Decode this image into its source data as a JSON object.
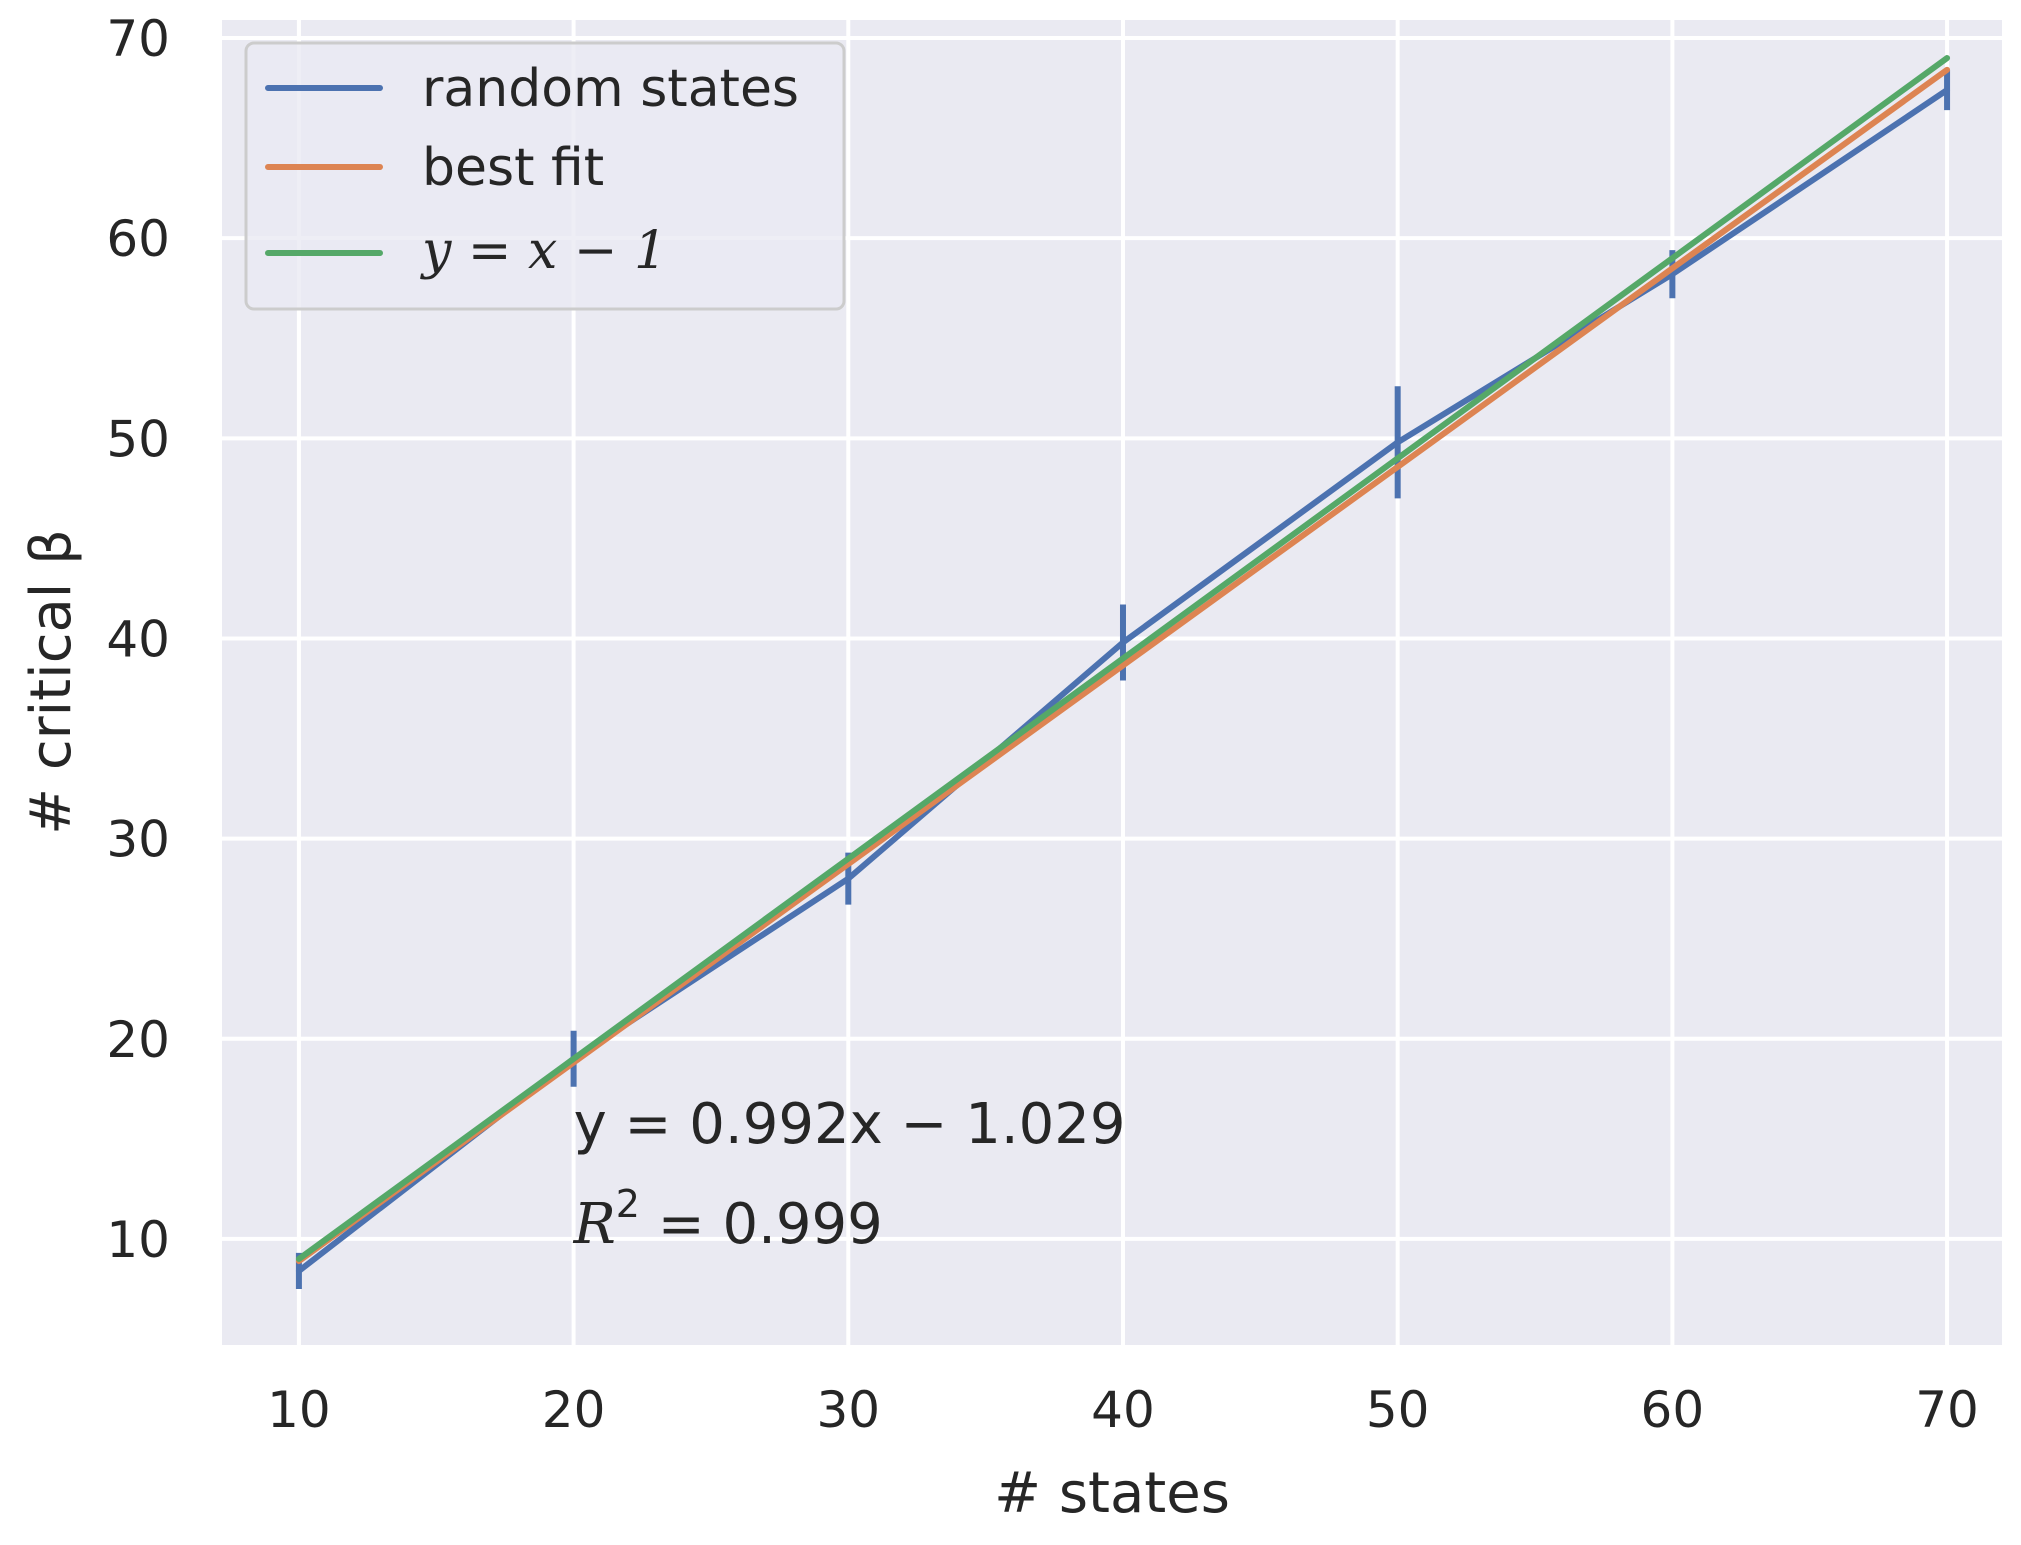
{
  "chart_data": {
    "type": "line",
    "xlabel": "# states",
    "ylabel": "# critical β",
    "xlim": [
      7.2,
      72.0
    ],
    "ylim": [
      4.7,
      70.9
    ],
    "xticks": [
      10,
      20,
      30,
      40,
      50,
      60,
      70
    ],
    "yticks": [
      10,
      20,
      30,
      40,
      50,
      60,
      70
    ],
    "grid": true,
    "legend_position": "top-left",
    "x": [
      10,
      20,
      30,
      40,
      50,
      60,
      70
    ],
    "series": [
      {
        "name": "random states",
        "color": "#4c72b0",
        "values": [
          8.4,
          19.0,
          28.0,
          39.8,
          49.8,
          58.2,
          67.4
        ],
        "error": [
          0.9,
          1.4,
          1.3,
          1.9,
          2.8,
          1.2,
          1.0
        ]
      },
      {
        "name": "best fit",
        "color": "#dd8452",
        "values": [
          8.891,
          18.811,
          28.731,
          38.651,
          48.571,
          58.491,
          68.411
        ]
      },
      {
        "name": "y = x − 1",
        "name_math": "y = x − 1",
        "color": "#55a868",
        "values": [
          9,
          19,
          29,
          39,
          49,
          59,
          69
        ]
      }
    ],
    "annotations": [
      {
        "text": "y = 0.992x − 1.029",
        "x": 20,
        "y": 14.8
      },
      {
        "text_prefix": "R",
        "superscript": "2",
        "text_suffix": " = 0.999",
        "x": 20,
        "y": 9.8
      }
    ]
  }
}
